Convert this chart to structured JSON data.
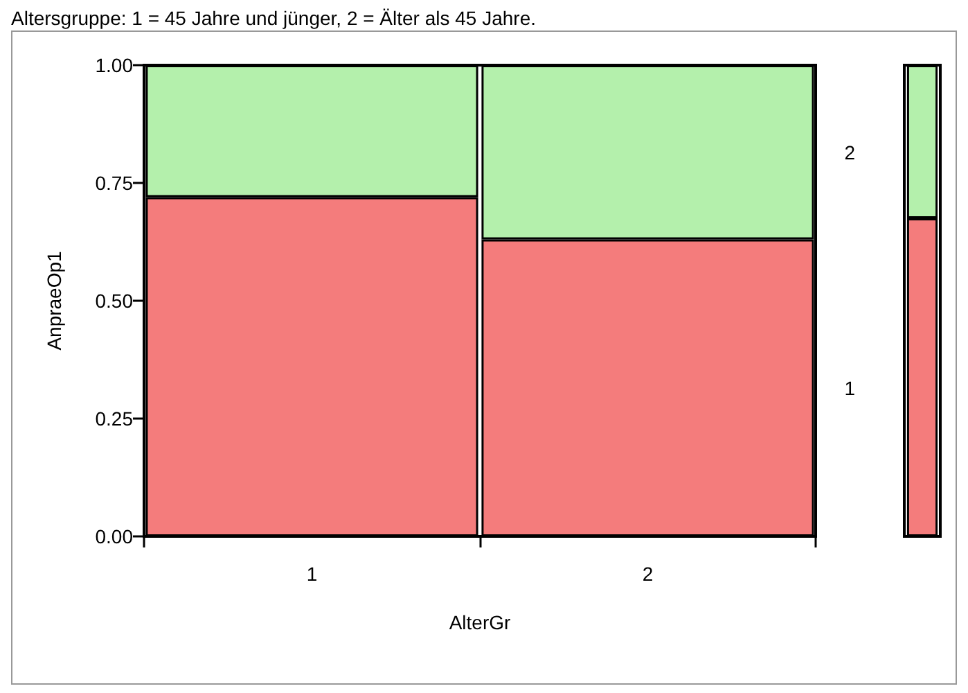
{
  "chart_data": [
    {
      "type": "bar",
      "title": "Altersgruppe: 1 = 45 Jahre und jünger, 2 = Älter als 45 Jahre.",
      "xlabel": "AlterGr",
      "ylabel": "AnpraeOp1",
      "categories": [
        "1",
        "2"
      ],
      "stacked": true,
      "series": [
        {
          "name": "1",
          "color": "#f47c7c",
          "values": [
            0.72,
            0.63
          ]
        },
        {
          "name": "2",
          "color": "#b4f0ac",
          "values": [
            0.28,
            0.37
          ]
        }
      ],
      "ylim": [
        0,
        1
      ],
      "yticks": [
        {
          "value": 0,
          "label": "0.00"
        },
        {
          "value": 0.25,
          "label": "0.25"
        },
        {
          "value": 0.5,
          "label": "0.50"
        },
        {
          "value": 0.75,
          "label": "0.75"
        },
        {
          "value": 1,
          "label": "1.00"
        }
      ],
      "grid": false,
      "legend": false
    },
    {
      "type": "bar",
      "categories": [
        null
      ],
      "stacked": true,
      "series": [
        {
          "color": "#f47c7c",
          "values": [
            0.675
          ]
        },
        {
          "color": "#b4f0ac",
          "values": [
            0.325
          ]
        }
      ],
      "ylim": [
        0,
        1
      ],
      "tick_labels": false,
      "grid": false,
      "legend": false
    }
  ]
}
